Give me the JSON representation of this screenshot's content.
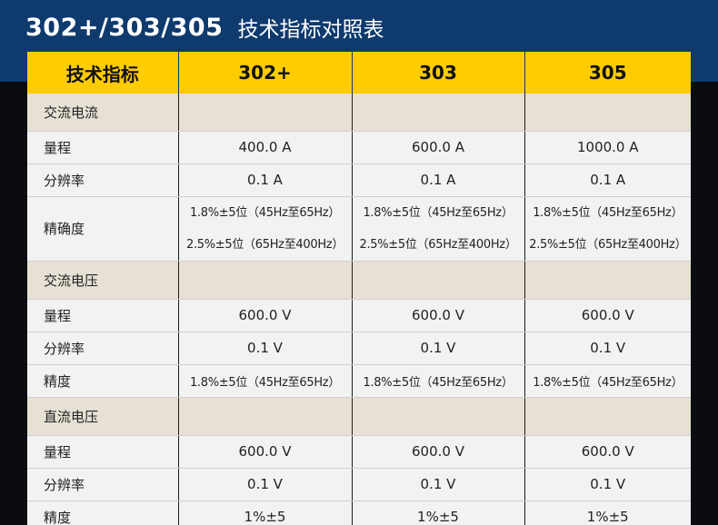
{
  "header": {
    "models": "302+/303/305",
    "title": "技术指标对照表"
  },
  "table": {
    "columns": [
      "技术指标",
      "302+",
      "303",
      "305"
    ],
    "sections": [
      {
        "name": "交流电流",
        "rows": [
          {
            "label": "量程",
            "values": [
              "400.0 A",
              "600.0 A",
              "1000.0 A"
            ]
          },
          {
            "label": "分辨率",
            "values": [
              "0.1 A",
              "0.1 A",
              "0.1 A"
            ]
          }
        ],
        "accuracy": {
          "label": "精确度",
          "line1": [
            "1.8%±5位（45Hz至65Hz）",
            "1.8%±5位（45Hz至65Hz）",
            "1.8%±5位（45Hz至65Hz）"
          ],
          "line2": [
            "2.5%±5位（65Hz至400Hz）",
            "2.5%±5位（65Hz至400Hz）",
            "2.5%±5位（65Hz至400Hz）"
          ]
        }
      },
      {
        "name": "交流电压",
        "rows": [
          {
            "label": "量程",
            "values": [
              "600.0 V",
              "600.0 V",
              "600.0 V"
            ]
          },
          {
            "label": "分辨率",
            "values": [
              "0.1 V",
              "0.1 V",
              "0.1 V"
            ]
          },
          {
            "label": "精度",
            "values": [
              "1.8%±5位（45Hz至65Hz）",
              "1.8%±5位（45Hz至65Hz）",
              "1.8%±5位（45Hz至65Hz）"
            ]
          }
        ]
      },
      {
        "name": "直流电压",
        "rows": [
          {
            "label": "量程",
            "values": [
              "600.0 V",
              "600.0 V",
              "600.0 V"
            ]
          },
          {
            "label": "分辨率",
            "values": [
              "0.1 V",
              "0.1 V",
              "0.1 V"
            ]
          },
          {
            "label": "精度",
            "values": [
              "1%±5",
              "1%±5",
              "1%±5"
            ]
          }
        ]
      }
    ]
  },
  "colors": {
    "header_bg": "#0e3a6e",
    "column_header_bg": "#ffcc00",
    "section_row_bg": "#e6e1d4",
    "data_row_bg": "#f2f2f2"
  }
}
